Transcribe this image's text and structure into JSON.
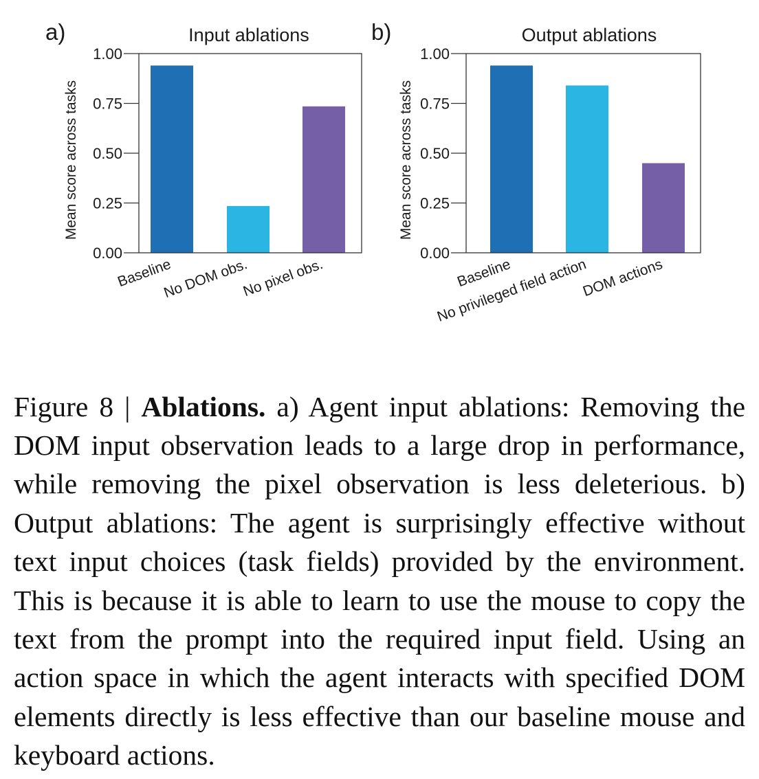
{
  "chart_data": [
    {
      "type": "bar",
      "panel_label": "a)",
      "title": "Input ablations",
      "ylabel": "Mean score across tasks",
      "xlabel": "",
      "categories": [
        "Baseline",
        "No DOM obs.",
        "No pixel obs."
      ],
      "values": [
        0.94,
        0.235,
        0.735
      ],
      "colors": [
        "#1f6fb4",
        "#2bb5e3",
        "#7560a8"
      ],
      "ylim": [
        0,
        1.0
      ],
      "yticks": [
        "0.00",
        "0.25",
        "0.50",
        "0.75",
        "1.00"
      ],
      "grid": false,
      "legend": "none"
    },
    {
      "type": "bar",
      "panel_label": "b)",
      "title": "Output ablations",
      "ylabel": "Mean score across tasks",
      "xlabel": "",
      "categories": [
        "Baseline",
        "No privileged field action",
        "DOM actions"
      ],
      "values": [
        0.94,
        0.84,
        0.45
      ],
      "colors": [
        "#1f6fb4",
        "#2bb5e3",
        "#7560a8"
      ],
      "ylim": [
        0,
        1.0
      ],
      "yticks": [
        "0.00",
        "0.25",
        "0.50",
        "0.75",
        "1.00"
      ],
      "grid": false,
      "legend": "none"
    }
  ],
  "caption": {
    "label": "Figure 8 | ",
    "bold": "Ablations.",
    "text": " a) Agent input ablations: Removing the DOM input observation leads to a large drop in performance, while removing the pixel observation is less deleterious. b) Output ablations: The agent is surprisingly effective without text input choices (task fields) provided by the environment. This is because it is able to learn to use the mouse to copy the text from the prompt into the required input field. Using an action space in which the agent interacts with specified DOM elements directly is less effective than our baseline mouse and keyboard actions."
  }
}
